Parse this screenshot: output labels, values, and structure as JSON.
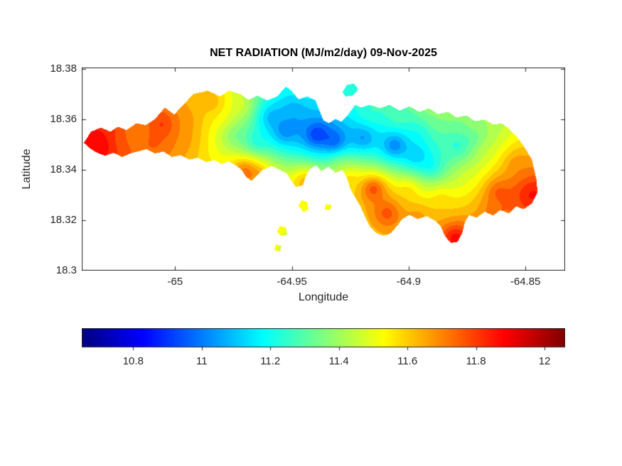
{
  "chart_data": {
    "type": "heatmap",
    "subtype": "filled-contour-map",
    "title": "NET RADIATION (MJ/m2/day) 09-Nov-2025",
    "variable": "NET RADIATION",
    "value_units": "MJ/m2/day",
    "date": "09-Nov-2025",
    "xlabel": "Longitude",
    "ylabel": "Latitude",
    "xlim": [
      -65.04,
      -64.833
    ],
    "ylim": [
      18.3,
      18.3806
    ],
    "xticks": [
      -65,
      -64.95,
      -64.9,
      -64.85
    ],
    "xtick_labels": [
      "-65",
      "-64.95",
      "-64.9",
      "-64.85"
    ],
    "yticks": [
      18.38,
      18.36,
      18.34,
      18.32,
      18.3
    ],
    "ytick_labels": [
      "18.38",
      "18.36",
      "18.34",
      "18.32",
      "18.3"
    ],
    "colormap": "jet",
    "grid": false,
    "contour_interval": 0.05,
    "colorbar": {
      "orientation": "horizontal",
      "position": "bottom",
      "vmin": 10.65,
      "vmax": 12.06,
      "ticks": [
        10.8,
        11,
        11.2,
        11.4,
        11.6,
        11.8,
        12
      ],
      "tick_labels": [
        "10.8",
        "11",
        "11.2",
        "11.4",
        "11.6",
        "11.8",
        "12"
      ]
    },
    "island_outline": [
      [
        -65.0391,
        18.3507
      ],
      [
        -65.036,
        18.3551
      ],
      [
        -65.0318,
        18.3568
      ],
      [
        -65.0278,
        18.3551
      ],
      [
        -65.0245,
        18.3571
      ],
      [
        -65.0208,
        18.3557
      ],
      [
        -65.0166,
        18.3585
      ],
      [
        -65.0126,
        18.3577
      ],
      [
        -65.0086,
        18.3602
      ],
      [
        -65.0044,
        18.3647
      ],
      [
        -65.0004,
        18.3619
      ],
      [
        -64.9965,
        18.3658
      ],
      [
        -64.9922,
        18.37
      ],
      [
        -64.9861,
        18.3714
      ],
      [
        -64.9806,
        18.3691
      ],
      [
        -64.977,
        18.3714
      ],
      [
        -64.9721,
        18.37
      ],
      [
        -64.9685,
        18.3677
      ],
      [
        -64.9648,
        18.3694
      ],
      [
        -64.9605,
        18.3675
      ],
      [
        -64.9563,
        18.3691
      ],
      [
        -64.9526,
        18.373
      ],
      [
        -64.9502,
        18.3714
      ],
      [
        -64.9472,
        18.368
      ],
      [
        -64.9435,
        18.3691
      ],
      [
        -64.9399,
        18.3675
      ],
      [
        -64.938,
        18.363
      ],
      [
        -64.9365,
        18.3596
      ],
      [
        -64.9341,
        18.3585
      ],
      [
        -64.9313,
        18.3602
      ],
      [
        -64.9289,
        18.3591
      ],
      [
        -64.9259,
        18.3619
      ],
      [
        -64.9228,
        18.3658
      ],
      [
        -64.9204,
        18.3647
      ],
      [
        -64.9167,
        18.3658
      ],
      [
        -64.9122,
        18.3644
      ],
      [
        -64.9082,
        18.3658
      ],
      [
        -64.9039,
        18.3635
      ],
      [
        -64.8997,
        18.3652
      ],
      [
        -64.8954,
        18.363
      ],
      [
        -64.8912,
        18.3644
      ],
      [
        -64.8875,
        18.3621
      ],
      [
        -64.8832,
        18.363
      ],
      [
        -64.8796,
        18.3607
      ],
      [
        -64.8753,
        18.3616
      ],
      [
        -64.8717,
        18.3593
      ],
      [
        -64.8674,
        18.3599
      ],
      [
        -64.8637,
        18.3579
      ],
      [
        -64.8601,
        18.3585
      ],
      [
        -64.8571,
        18.3563
      ],
      [
        -64.854,
        18.3535
      ],
      [
        -64.851,
        18.3498
      ],
      [
        -64.8473,
        18.3442
      ],
      [
        -64.8452,
        18.3358
      ],
      [
        -64.8449,
        18.3311
      ],
      [
        -64.8473,
        18.3266
      ],
      [
        -64.8507,
        18.3244
      ],
      [
        -64.854,
        18.3255
      ],
      [
        -64.857,
        18.3227
      ],
      [
        -64.8607,
        18.3241
      ],
      [
        -64.8637,
        18.3219
      ],
      [
        -64.8674,
        18.3233
      ],
      [
        -64.871,
        18.321
      ],
      [
        -64.8741,
        18.3221
      ],
      [
        -64.8759,
        18.3193
      ],
      [
        -64.8771,
        18.3149
      ],
      [
        -64.879,
        18.3115
      ],
      [
        -64.882,
        18.311
      ],
      [
        -64.8844,
        18.3137
      ],
      [
        -64.8863,
        18.3177
      ],
      [
        -64.8887,
        18.3199
      ],
      [
        -64.8923,
        18.3216
      ],
      [
        -64.896,
        18.3205
      ],
      [
        -64.8997,
        18.3221
      ],
      [
        -64.9027,
        18.3205
      ],
      [
        -64.9051,
        18.3177
      ],
      [
        -64.9076,
        18.3149
      ],
      [
        -64.9106,
        18.3138
      ],
      [
        -64.9136,
        18.3149
      ],
      [
        -64.9167,
        18.3177
      ],
      [
        -64.9188,
        18.3216
      ],
      [
        -64.9206,
        18.3255
      ],
      [
        -64.9228,
        18.3289
      ],
      [
        -64.9249,
        18.3322
      ],
      [
        -64.9264,
        18.3367
      ],
      [
        -64.9283,
        18.34
      ],
      [
        -64.9313,
        18.3389
      ],
      [
        -64.9343,
        18.3412
      ],
      [
        -64.9374,
        18.3395
      ],
      [
        -64.9398,
        18.3417
      ],
      [
        -64.9426,
        18.34
      ],
      [
        -64.9441,
        18.3373
      ],
      [
        -64.9453,
        18.3339
      ],
      [
        -64.9481,
        18.3331
      ],
      [
        -64.9502,
        18.3356
      ],
      [
        -64.952,
        18.3384
      ],
      [
        -64.9551,
        18.34
      ],
      [
        -64.9587,
        18.3414
      ],
      [
        -64.9624,
        18.34
      ],
      [
        -64.9648,
        18.3378
      ],
      [
        -64.9672,
        18.3356
      ],
      [
        -64.9697,
        18.3373
      ],
      [
        -64.9715,
        18.34
      ],
      [
        -64.9739,
        18.3417
      ],
      [
        -64.977,
        18.3434
      ],
      [
        -64.98,
        18.3423
      ],
      [
        -64.9831,
        18.3439
      ],
      [
        -64.9867,
        18.3431
      ],
      [
        -64.9904,
        18.3448
      ],
      [
        -64.994,
        18.344
      ],
      [
        -64.9977,
        18.3459
      ],
      [
        -65.0013,
        18.3451
      ],
      [
        -65.005,
        18.3473
      ],
      [
        -65.0087,
        18.3465
      ],
      [
        -65.0123,
        18.3482
      ],
      [
        -65.016,
        18.3473
      ],
      [
        -65.0193,
        18.3465
      ],
      [
        -65.0226,
        18.3451
      ],
      [
        -65.0263,
        18.3467
      ],
      [
        -65.0299,
        18.3456
      ],
      [
        -65.0333,
        18.3467
      ],
      [
        -65.0363,
        18.3484
      ]
    ],
    "islets": [
      [
        [
          -64.9283,
          18.3708
        ],
        [
          -64.9265,
          18.3736
        ],
        [
          -64.9234,
          18.3742
        ],
        [
          -64.9216,
          18.3719
        ],
        [
          -64.924,
          18.3694
        ],
        [
          -64.9271,
          18.3691
        ]
      ],
      [
        [
          -64.9459,
          18.328
        ],
        [
          -64.9435,
          18.3272
        ],
        [
          -64.9429,
          18.3244
        ],
        [
          -64.945,
          18.3233
        ],
        [
          -64.9472,
          18.3255
        ]
      ],
      [
        [
          -64.9551,
          18.3177
        ],
        [
          -64.9526,
          18.3171
        ],
        [
          -64.952,
          18.3143
        ],
        [
          -64.9545,
          18.3137
        ],
        [
          -64.9563,
          18.3154
        ]
      ],
      [
        [
          -64.9569,
          18.3104
        ],
        [
          -64.9545,
          18.3098
        ],
        [
          -64.9551,
          18.3076
        ],
        [
          -64.9575,
          18.3081
        ]
      ],
      [
        [
          -64.9356,
          18.3263
        ],
        [
          -64.9331,
          18.3261
        ],
        [
          -64.9334,
          18.3241
        ],
        [
          -64.9359,
          18.3244
        ]
      ]
    ],
    "field_samples": [
      [
        -65.0324,
        18.3504,
        12.05
      ],
      [
        -65.0378,
        18.3501,
        11.9
      ],
      [
        -65.0348,
        18.347,
        11.85
      ],
      [
        -65.0263,
        18.3562,
        11.85
      ],
      [
        -65.0248,
        18.3526,
        11.75
      ],
      [
        -65.0172,
        18.3554,
        11.6
      ],
      [
        -65.0096,
        18.3512,
        11.8
      ],
      [
        -65.0056,
        18.3579,
        11.95
      ],
      [
        -64.9974,
        18.3526,
        11.7
      ],
      [
        -64.9953,
        18.3596,
        11.7
      ],
      [
        -64.9837,
        18.3666,
        11.75
      ],
      [
        -64.9806,
        18.361,
        11.55
      ],
      [
        -64.9746,
        18.354,
        11.25
      ],
      [
        -64.9715,
        18.3652,
        11.55
      ],
      [
        -64.97,
        18.34,
        11.95
      ],
      [
        -64.9654,
        18.3512,
        11.05
      ],
      [
        -64.9648,
        18.3378,
        11.8
      ],
      [
        -64.9593,
        18.361,
        10.9
      ],
      [
        -64.9532,
        18.3554,
        10.8
      ],
      [
        -64.9487,
        18.3638,
        10.95
      ],
      [
        -64.9456,
        18.3702,
        11.2
      ],
      [
        -64.9441,
        18.3358,
        11.85
      ],
      [
        -64.9395,
        18.354,
        10.6
      ],
      [
        -64.9319,
        18.3512,
        10.65
      ],
      [
        -64.9295,
        18.3423,
        11.45
      ],
      [
        -64.9259,
        18.3372,
        11.75
      ],
      [
        -64.9197,
        18.3526,
        10.8
      ],
      [
        -64.9167,
        18.3624,
        11.3
      ],
      [
        -64.9152,
        18.333,
        12.1
      ],
      [
        -64.9091,
        18.3232,
        11.95
      ],
      [
        -64.906,
        18.3498,
        10.65
      ],
      [
        -64.9045,
        18.361,
        11.35
      ],
      [
        -64.9,
        18.333,
        11.7
      ],
      [
        -64.8969,
        18.3456,
        10.85
      ],
      [
        -64.896,
        18.3218,
        11.75
      ],
      [
        -64.8954,
        18.3554,
        11.1
      ],
      [
        -64.8923,
        18.365,
        11.45
      ],
      [
        -64.8908,
        18.3414,
        11.0
      ],
      [
        -64.8893,
        18.3596,
        11.4
      ],
      [
        -64.8863,
        18.3288,
        11.65
      ],
      [
        -64.8832,
        18.3619,
        11.4
      ],
      [
        -64.8802,
        18.3134,
        12.05
      ],
      [
        -64.8787,
        18.3498,
        11.05
      ],
      [
        -64.8741,
        18.3372,
        11.5
      ],
      [
        -64.8726,
        18.3526,
        11.2
      ],
      [
        -64.871,
        18.3582,
        11.45
      ],
      [
        -64.868,
        18.3484,
        11.5
      ],
      [
        -64.8619,
        18.3316,
        11.9
      ],
      [
        -64.8619,
        18.3232,
        11.8
      ],
      [
        -64.8543,
        18.3428,
        11.75
      ],
      [
        -64.8482,
        18.3302,
        11.95
      ],
      [
        -64.8458,
        18.3311,
        11.9
      ]
    ]
  }
}
